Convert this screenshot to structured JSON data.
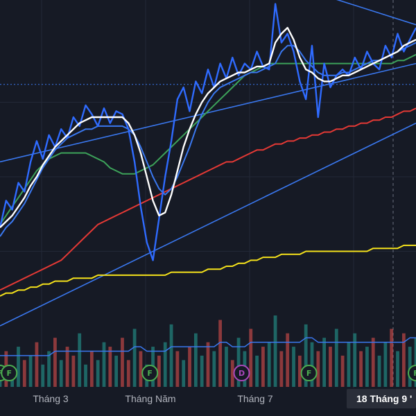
{
  "chart_data": {
    "type": "line",
    "title": "",
    "xlabel": "",
    "ylabel": "",
    "x_ticks": [
      "Tháng 3",
      "Tháng Năm",
      "Tháng 7"
    ],
    "crosshair_label": "18 Tháng 9 '",
    "ylim": [
      0,
      100
    ],
    "grid": true,
    "legend": "none",
    "series": [
      {
        "key": "price",
        "color": "#2f6bff",
        "values": [
          33,
          42,
          39,
          48,
          45,
          55,
          62,
          56,
          64,
          60,
          66,
          63,
          70,
          67,
          74,
          71,
          67,
          73,
          68,
          72,
          71,
          66,
          55,
          40,
          28,
          22,
          36,
          50,
          62,
          76,
          80,
          72,
          82,
          78,
          86,
          80,
          88,
          83,
          90,
          84,
          88,
          86,
          92,
          87,
          86,
          108,
          95,
          98,
          92,
          82,
          76,
          94,
          70,
          88,
          80,
          84,
          86,
          84,
          90,
          86,
          92,
          88,
          86,
          94,
          90,
          98,
          92,
          96,
          100
        ]
      },
      {
        "key": "ma_fast",
        "color": "#ffffff",
        "values": [
          33,
          35,
          37,
          40,
          43,
          47,
          50,
          54,
          57,
          60,
          62,
          64,
          66,
          68,
          69,
          70,
          70,
          70,
          70,
          70,
          70,
          68,
          64,
          58,
          50,
          42,
          37,
          38,
          44,
          52,
          60,
          66,
          71,
          75,
          78,
          80,
          82,
          83,
          84,
          85,
          85,
          86,
          87,
          87,
          88,
          95,
          98,
          100,
          96,
          90,
          86,
          85,
          83,
          82,
          82,
          83,
          84,
          84,
          85,
          86,
          87,
          88,
          89,
          90,
          91,
          92,
          94,
          95,
          96
        ]
      },
      {
        "key": "ma_mid",
        "color": "#3a78f0",
        "values": [
          30,
          33,
          35,
          38,
          41,
          45,
          49,
          53,
          56,
          59,
          61,
          63,
          64,
          65,
          66,
          66,
          67,
          67,
          67,
          67,
          67,
          66,
          64,
          60,
          55,
          50,
          46,
          44,
          46,
          50,
          55,
          60,
          66,
          71,
          75,
          78,
          80,
          81,
          82,
          83,
          84,
          85,
          85,
          86,
          87,
          88,
          92,
          94,
          94,
          92,
          89,
          87,
          85,
          84,
          84,
          84,
          85,
          85,
          86,
          87,
          88,
          89,
          89,
          90,
          91,
          92,
          93,
          94,
          95
        ]
      },
      {
        "key": "ma_50",
        "color": "#3da35a",
        "values": [
          34,
          37,
          40,
          43,
          46,
          49,
          52,
          54,
          56,
          57,
          58,
          58,
          58,
          58,
          58,
          57,
          56,
          55,
          53,
          52,
          51,
          51,
          51,
          52,
          53,
          54,
          56,
          58,
          60,
          62,
          64,
          66,
          68,
          70,
          72,
          74,
          76,
          78,
          80,
          82,
          84,
          85,
          86,
          87,
          88,
          88,
          88,
          88,
          88,
          88,
          88,
          88,
          88,
          88,
          88,
          88,
          88,
          88,
          88,
          88,
          88,
          88,
          88,
          88,
          88,
          89,
          89,
          90,
          91
        ]
      },
      {
        "key": "ma_100",
        "color": "#e53935",
        "values": [
          12,
          13,
          14,
          15,
          16,
          17,
          18,
          19,
          20,
          21,
          22,
          24,
          26,
          28,
          30,
          32,
          34,
          35,
          36,
          37,
          38,
          39,
          40,
          41,
          42,
          43,
          44,
          45,
          46,
          47,
          48,
          49,
          50,
          51,
          52,
          53,
          54,
          55,
          55,
          56,
          57,
          58,
          59,
          59,
          60,
          61,
          61,
          62,
          62,
          63,
          63,
          64,
          64,
          65,
          65,
          66,
          66,
          67,
          67,
          68,
          68,
          69,
          69,
          70,
          70,
          71,
          72,
          72,
          73
        ]
      },
      {
        "key": "ma_200",
        "color": "#f5e21b",
        "values": [
          10,
          11,
          11,
          12,
          12,
          13,
          13,
          14,
          14,
          15,
          15,
          15,
          16,
          16,
          16,
          16,
          17,
          17,
          17,
          17,
          17,
          17,
          17,
          17,
          17,
          17,
          17,
          17,
          18,
          18,
          18,
          18,
          18,
          18,
          19,
          19,
          19,
          20,
          20,
          21,
          21,
          22,
          22,
          23,
          23,
          23,
          24,
          24,
          24,
          24,
          25,
          25,
          25,
          25,
          25,
          25,
          25,
          25,
          25,
          25,
          25,
          26,
          26,
          26,
          26,
          26,
          27,
          27,
          27
        ]
      }
    ],
    "trendlines": [
      {
        "key": "channel-upper",
        "color": "#3a78f0",
        "from": [
          0,
          55
        ],
        "to": [
          68,
          88
        ]
      },
      {
        "key": "channel-lower",
        "color": "#3a78f0",
        "from": [
          0,
          0
        ],
        "to": [
          68,
          68
        ]
      },
      {
        "key": "triangle-top",
        "color": "#3a78f0",
        "from": [
          45,
          116
        ],
        "to": [
          68,
          101
        ]
      }
    ],
    "horizontal_level": {
      "y": 81,
      "color": "#3a78f0"
    },
    "volume": {
      "up_color": "#26a69a",
      "down_color": "#ef5350",
      "values": [
        5,
        8,
        4,
        9,
        6,
        7,
        10,
        5,
        8,
        11,
        6,
        9,
        7,
        12,
        5,
        8,
        6,
        10,
        9,
        7,
        11,
        6,
        13,
        8,
        5,
        9,
        7,
        10,
        14,
        8,
        6,
        9,
        12,
        7,
        10,
        8,
        15,
        9,
        6,
        11,
        8,
        13,
        7,
        9,
        10,
        16,
        8,
        12,
        9,
        7,
        14,
        10,
        8,
        11,
        9,
        13,
        7,
        10,
        12,
        8,
        9,
        11,
        7,
        10,
        13,
        8,
        12,
        9,
        11
      ],
      "directions": [
        1,
        0,
        1,
        1,
        0,
        1,
        0,
        1,
        1,
        0,
        1,
        0,
        0,
        1,
        1,
        0,
        1,
        1,
        0,
        1,
        0,
        0,
        1,
        0,
        1,
        1,
        0,
        1,
        1,
        0,
        1,
        0,
        1,
        1,
        0,
        1,
        0,
        1,
        0,
        1,
        1,
        0,
        1,
        0,
        1,
        1,
        0,
        0,
        1,
        0,
        1,
        1,
        0,
        1,
        0,
        1,
        0,
        1,
        1,
        0,
        1,
        0,
        1,
        1,
        0,
        1,
        0,
        1,
        1
      ],
      "ma": [
        7,
        7,
        7,
        7,
        7,
        7,
        7,
        7,
        7,
        8,
        8,
        8,
        8,
        8,
        8,
        8,
        8,
        8,
        8,
        8,
        8,
        8,
        9,
        9,
        8,
        8,
        8,
        8,
        9,
        9,
        9,
        9,
        9,
        9,
        9,
        9,
        10,
        10,
        9,
        9,
        9,
        10,
        10,
        10,
        10,
        10,
        10,
        10,
        10,
        10,
        11,
        11,
        10,
        10,
        10,
        10,
        10,
        10,
        10,
        10,
        10,
        10,
        10,
        10,
        10,
        10,
        10,
        11,
        11
      ],
      "ma_color": "#3a78f0"
    },
    "markers": [
      {
        "label": "F",
        "at": 0,
        "color": "#4caf50"
      },
      {
        "label": "F",
        "at": 1.5,
        "color": "#4caf50"
      },
      {
        "label": "F",
        "at": 24.5,
        "color": "#4caf50"
      },
      {
        "label": "D",
        "at": 39.5,
        "color": "#ab47bc"
      },
      {
        "label": "F",
        "at": 50.5,
        "color": "#4caf50"
      },
      {
        "label": "F",
        "at": 68,
        "color": "#4caf50"
      }
    ]
  }
}
